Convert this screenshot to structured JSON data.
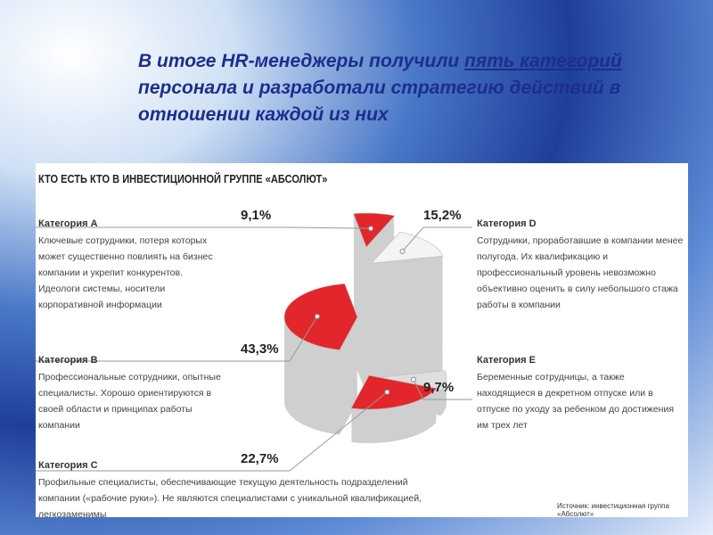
{
  "heading": [
    "В итоге HR-менеджеры получили ",
    "пять категорий",
    " персонала  и разработали стратегию действий в отношении каждой из них"
  ],
  "chart_data": {
    "type": "pie",
    "title": "КТО ЕСТЬ КТО В ИНВЕСТИЦИОННОЙ ГРУППЕ «АБСОЛЮТ»",
    "categories": [
      "Категория A",
      "Категория B",
      "Категория C",
      "Категория D",
      "Категория E"
    ],
    "descriptions": [
      "Ключевые сотрудники, потеря которых может существенно повлиять на бизнес компании и укрепит конкурентов. Идеологи системы, носители корпоративной информации",
      "Профессиональные сотрудники, опытные специалисты. Хорошо ориентируются в своей области и принципах работы компании",
      "Профильные специалисты, обеспечивающие текущую деятельность подразделений компании («рабочие руки»). Не являются специалистами с уникальной квалификацией, легкозаменимы",
      "Сотрудники, проработавшие в компании менее полугода. Их квалификацию и профессиональный уровень невозможно объективно оценить в силу небольшого стажа работы в компании",
      "Беременные сотрудницы, а также находящиеся в декретном отпуске или в отпуске по уходу за ребенком до достижения им трех лет"
    ],
    "values": [
      9.1,
      43.3,
      22.7,
      15.2,
      9.7
    ],
    "value_labels": [
      "9,1%",
      "43,3%",
      "22,7%",
      "15,2%",
      "9,7%"
    ],
    "colors": [
      "#e2262b",
      "#e2262b",
      "#e2262b",
      "#f4f4f4",
      "#dedede"
    ],
    "source": "Источник: инвестиционная группа «Абсолют»"
  }
}
